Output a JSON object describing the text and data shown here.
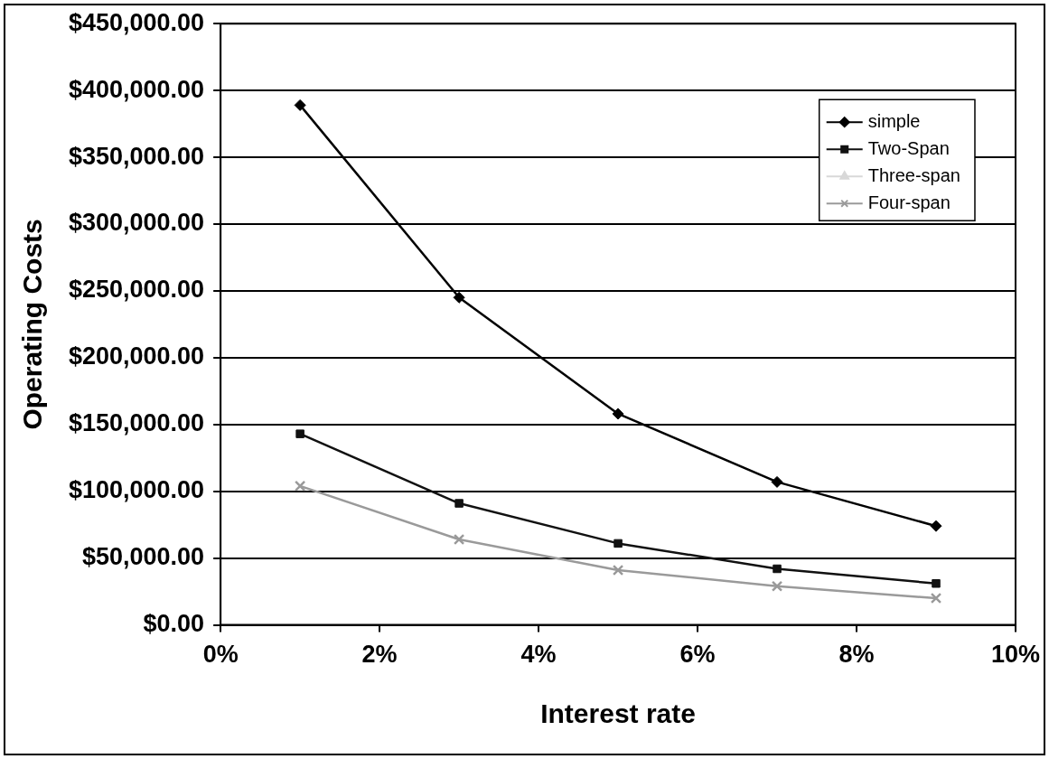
{
  "chart_data": {
    "type": "line",
    "xlabel": "Interest rate",
    "ylabel": "Operating Costs",
    "x": [
      1,
      3,
      5,
      7,
      9
    ],
    "series": [
      {
        "name": "simple",
        "color": "#000000",
        "marker": "diamond",
        "values": [
          389000,
          245000,
          158000,
          107000,
          74000
        ]
      },
      {
        "name": "Two-Span",
        "color": "#111111",
        "marker": "square",
        "values": [
          143000,
          91000,
          61000,
          42000,
          31000
        ]
      },
      {
        "name": "Three-span",
        "color": "#d8d8d8",
        "marker": "triangle",
        "values": [
          null,
          null,
          null,
          null,
          null
        ]
      },
      {
        "name": "Four-span",
        "color": "#9a9a9a",
        "marker": "cross",
        "values": [
          104000,
          64000,
          41000,
          29000,
          20000
        ]
      }
    ],
    "xlim": [
      0,
      10
    ],
    "xticks": [
      {
        "value": 0,
        "label": "0%"
      },
      {
        "value": 2,
        "label": "2%"
      },
      {
        "value": 4,
        "label": "4%"
      },
      {
        "value": 6,
        "label": "6%"
      },
      {
        "value": 8,
        "label": "8%"
      },
      {
        "value": 10,
        "label": "10%"
      }
    ],
    "ylim": [
      0,
      450000
    ],
    "yticks": [
      {
        "value": 0,
        "label": "$0.00"
      },
      {
        "value": 50000,
        "label": "$50,000.00"
      },
      {
        "value": 100000,
        "label": "$100,000.00"
      },
      {
        "value": 150000,
        "label": "$150,000.00"
      },
      {
        "value": 200000,
        "label": "$200,000.00"
      },
      {
        "value": 250000,
        "label": "$250,000.00"
      },
      {
        "value": 300000,
        "label": "$300,000.00"
      },
      {
        "value": 350000,
        "label": "$350,000.00"
      },
      {
        "value": 400000,
        "label": "$400,000.00"
      },
      {
        "value": 450000,
        "label": "$450,000.00"
      }
    ],
    "grid": "y",
    "legend": "top right",
    "line_style": "solid"
  }
}
